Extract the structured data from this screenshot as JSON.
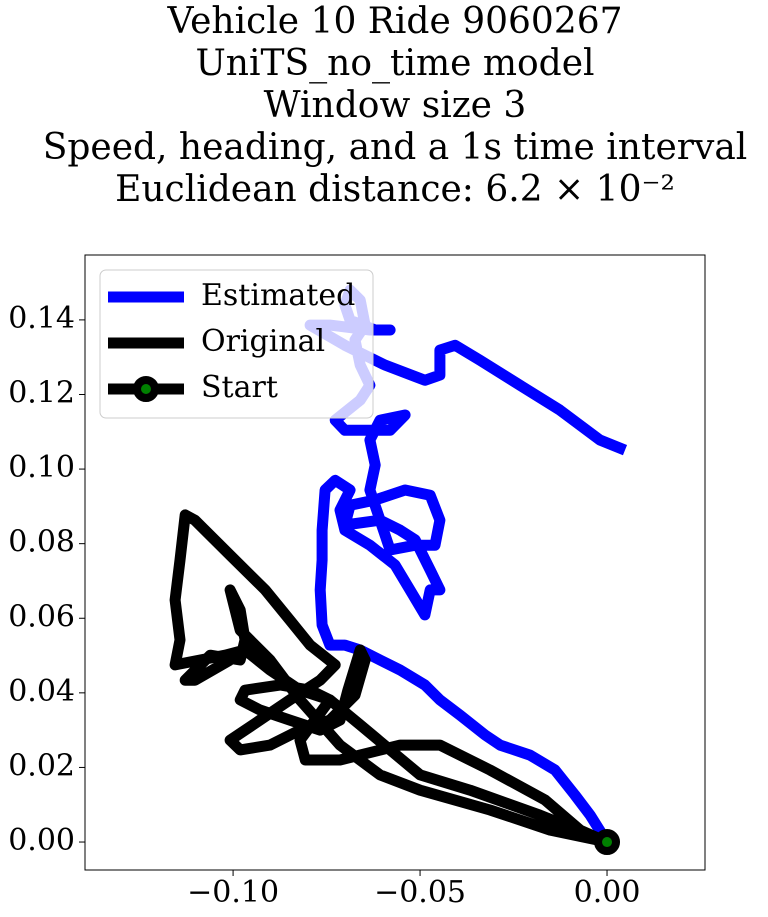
{
  "chart_data": {
    "type": "line",
    "title": [
      "Vehicle 10 Ride 9060267",
      "UniTS_no_time model",
      "Window size 3",
      "Speed, heading, and a 1s time interval",
      "Euclidean distance: 6.2 × 10⁻²"
    ],
    "xlim": [
      -0.1396,
      0.0262
    ],
    "ylim": [
      -0.0075,
      0.1574
    ],
    "xticks": [
      {
        "value": -0.1,
        "label": "−0.10"
      },
      {
        "value": -0.05,
        "label": "−0.05"
      },
      {
        "value": 0,
        "label": "0.00"
      }
    ],
    "yticks": [
      {
        "value": 0,
        "label": "0.00"
      },
      {
        "value": 0.02,
        "label": "0.02"
      },
      {
        "value": 0.04,
        "label": "0.04"
      },
      {
        "value": 0.06,
        "label": "0.06"
      },
      {
        "value": 0.08,
        "label": "0.08"
      },
      {
        "value": 0.1,
        "label": "0.10"
      },
      {
        "value": 0.12,
        "label": "0.12"
      },
      {
        "value": 0.14,
        "label": "0.14"
      }
    ],
    "legend": "upper left",
    "series": [
      {
        "name": "Estimated",
        "color": "#0000ff",
        "x": [
          0,
          -0.0045,
          -0.0086,
          -0.0139,
          -0.0206,
          -0.0286,
          -0.0326,
          -0.0393,
          -0.0447,
          -0.0487,
          -0.0553,
          -0.0607,
          -0.066,
          -0.0701,
          -0.0741,
          -0.0762,
          -0.0767,
          -0.0762,
          -0.0762,
          -0.0754,
          -0.0727,
          -0.0687,
          -0.0714,
          -0.0701,
          -0.0634,
          -0.0567,
          -0.0527,
          -0.0487,
          -0.0473,
          -0.0447,
          -0.0473,
          -0.0513,
          -0.0553,
          -0.0607,
          -0.0701,
          -0.0687,
          -0.062,
          -0.054,
          -0.0473,
          -0.0447,
          -0.046,
          -0.0513,
          -0.058,
          -0.0634,
          -0.062,
          -0.0634,
          -0.0607,
          -0.054,
          -0.058,
          -0.0701,
          -0.0727,
          -0.066,
          -0.0634,
          -0.066,
          -0.0674,
          -0.0647,
          -0.066,
          -0.0687,
          -0.0701,
          -0.0687,
          -0.062,
          -0.058,
          -0.0634,
          -0.0741,
          -0.0794,
          -0.0701,
          -0.0594,
          -0.0487,
          -0.0447,
          -0.0447,
          -0.0406,
          -0.034,
          -0.0233,
          -0.0126,
          -0.0019,
          0.0048
        ],
        "values": [
          0,
          0.0072,
          0.0126,
          0.0193,
          0.0233,
          0.026,
          0.0287,
          0.034,
          0.0381,
          0.0421,
          0.0461,
          0.0488,
          0.0515,
          0.0528,
          0.0528,
          0.0582,
          0.0676,
          0.0756,
          0.0836,
          0.0944,
          0.097,
          0.0944,
          0.089,
          0.0836,
          0.0796,
          0.0743,
          0.0676,
          0.0609,
          0.0676,
          0.0676,
          0.0729,
          0.081,
          0.0836,
          0.0863,
          0.085,
          0.0903,
          0.0917,
          0.0944,
          0.093,
          0.0863,
          0.0796,
          0.0796,
          0.0783,
          0.0944,
          0.1011,
          0.1078,
          0.1131,
          0.1145,
          0.1104,
          0.1104,
          0.1131,
          0.1185,
          0.1225,
          0.1279,
          0.1346,
          0.1386,
          0.1453,
          0.148,
          0.144,
          0.1399,
          0.1373,
          0.1373,
          0.1373,
          0.1386,
          0.1386,
          0.1332,
          0.1279,
          0.1238,
          0.1252,
          0.1319,
          0.1332,
          0.1292,
          0.1225,
          0.1158,
          0.1078,
          0.1051
        ]
      },
      {
        "name": "Original",
        "color": "#000000",
        "x": [
          0,
          -0.0179,
          -0.0366,
          -0.05,
          -0.066,
          -0.0741,
          -0.0821,
          -0.0901,
          -0.0968,
          -0.1021,
          -0.1088,
          -0.1155,
          -0.1142,
          -0.1155,
          -0.1142,
          -0.1128,
          -0.1102,
          -0.1008,
          -0.0914,
          -0.0848,
          -0.0794,
          -0.0727,
          -0.0767,
          -0.0848,
          -0.0928,
          -0.1008,
          -0.0981,
          -0.0901,
          -0.0821,
          -0.0741,
          -0.0674,
          -0.0647,
          -0.066,
          -0.0693,
          -0.0714,
          -0.0767,
          -0.0848,
          -0.0928,
          -0.0981,
          -0.0968,
          -0.0874,
          -0.0794,
          -0.0741,
          -0.0821,
          -0.0807,
          -0.0714,
          -0.0553,
          -0.0447,
          -0.0313,
          -0.0166,
          -0.0072,
          0,
          -0.0152,
          -0.0313,
          -0.05,
          -0.0607,
          -0.0714,
          -0.0821,
          -0.0901,
          -0.0981,
          -0.1008,
          -0.0981,
          -0.0968,
          -0.0981,
          -0.1061,
          -0.1128,
          -0.1102,
          -0.1008
        ],
        "values": [
          0,
          0.0072,
          0.0139,
          0.018,
          0.0314,
          0.0381,
          0.0407,
          0.0461,
          0.0515,
          0.0501,
          0.0488,
          0.0475,
          0.0542,
          0.0649,
          0.0756,
          0.0877,
          0.0863,
          0.0769,
          0.0676,
          0.0595,
          0.0528,
          0.0475,
          0.0434,
          0.0381,
          0.0327,
          0.0273,
          0.0247,
          0.026,
          0.03,
          0.0327,
          0.0394,
          0.0488,
          0.0515,
          0.0407,
          0.0327,
          0.03,
          0.0327,
          0.0354,
          0.0381,
          0.0407,
          0.0421,
          0.0407,
          0.0381,
          0.0273,
          0.022,
          0.022,
          0.026,
          0.026,
          0.0193,
          0.0113,
          0.0032,
          0,
          0.0032,
          0.0086,
          0.0139,
          0.018,
          0.026,
          0.0381,
          0.0488,
          0.0568,
          0.0676,
          0.0622,
          0.0542,
          0.0488,
          0.0501,
          0.0434,
          0.0434,
          0.0488
        ]
      },
      {
        "name": "Start",
        "color": "#000000",
        "marker_color": "#008000",
        "x": [
          0
        ],
        "values": [
          0
        ]
      }
    ]
  }
}
